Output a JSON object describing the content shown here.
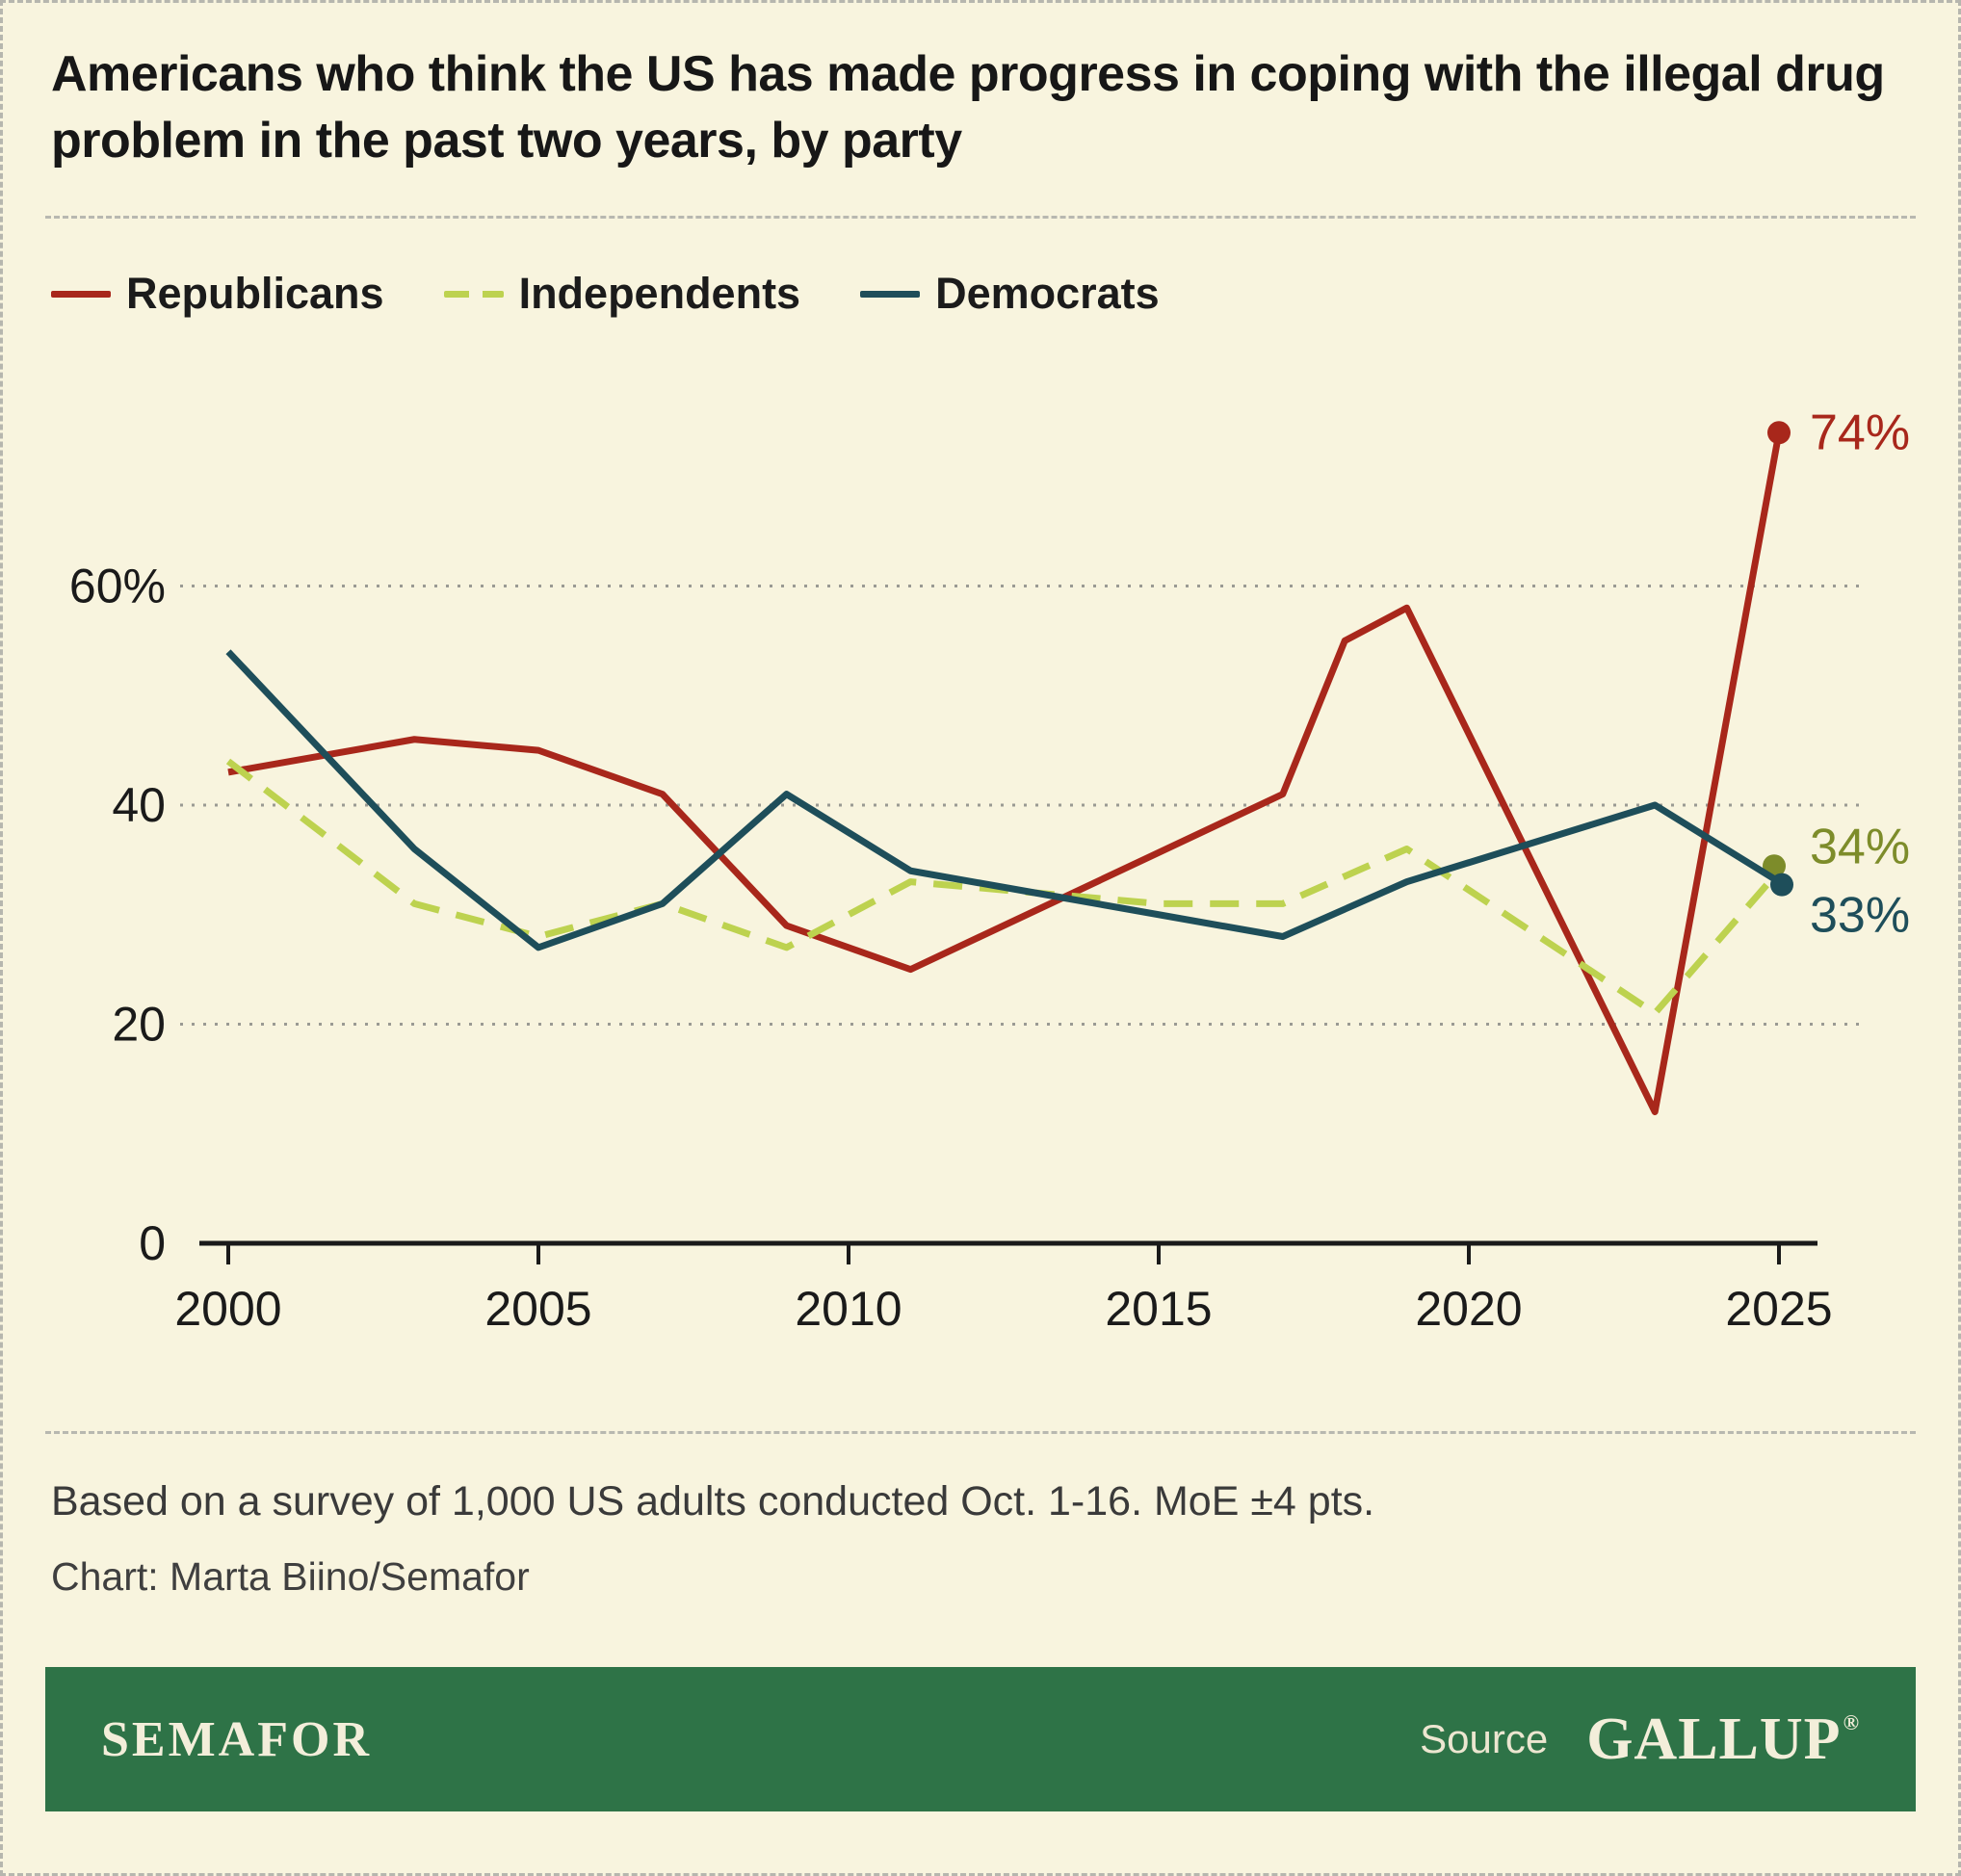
{
  "chart_data": {
    "type": "line",
    "title": "Americans who think the US has made progress in coping with the illegal drug problem in the past two years, by party",
    "xlabel": "",
    "ylabel": "",
    "xlim": [
      2000,
      2025
    ],
    "ylim": [
      0,
      80
    ],
    "x_ticks": [
      2000,
      2005,
      2010,
      2015,
      2020,
      2025
    ],
    "y_ticks": [
      0,
      20,
      40,
      60
    ],
    "y_tick_labels": [
      "0",
      "20",
      "40",
      "60%"
    ],
    "grid": "horizontal dotted",
    "legend_position": "top-left",
    "series": [
      {
        "name": "Republicans",
        "color": "#a8271b",
        "style": "solid",
        "points": [
          [
            2000,
            43
          ],
          [
            2003,
            46
          ],
          [
            2005,
            45
          ],
          [
            2007,
            41
          ],
          [
            2009,
            29
          ],
          [
            2011,
            25
          ],
          [
            2017,
            41
          ],
          [
            2018,
            55
          ],
          [
            2019,
            58
          ],
          [
            2023,
            12
          ],
          [
            2025,
            74
          ]
        ],
        "end_label": "74%",
        "end_label_color": "#a8271b"
      },
      {
        "name": "Independents",
        "color": "#bdd24f",
        "style": "dashed",
        "points": [
          [
            2000,
            44
          ],
          [
            2003,
            31
          ],
          [
            2005,
            28
          ],
          [
            2007,
            31
          ],
          [
            2009,
            27
          ],
          [
            2011,
            33
          ],
          [
            2013,
            32
          ],
          [
            2015,
            31
          ],
          [
            2017,
            31
          ],
          [
            2019,
            36
          ],
          [
            2023,
            21
          ],
          [
            2025,
            34
          ]
        ],
        "end_label": "34%",
        "end_label_color": "#7d8c2a",
        "dot_color": "#7d8c2a"
      },
      {
        "name": "Democrats",
        "color": "#1e4e5a",
        "style": "solid",
        "points": [
          [
            2000,
            54
          ],
          [
            2003,
            36
          ],
          [
            2005,
            27
          ],
          [
            2007,
            31
          ],
          [
            2009,
            41
          ],
          [
            2011,
            34
          ],
          [
            2013,
            32
          ],
          [
            2015,
            30
          ],
          [
            2017,
            28
          ],
          [
            2019,
            33
          ],
          [
            2023,
            40
          ],
          [
            2025,
            33
          ]
        ],
        "end_label": "33%",
        "end_label_color": "#1e4e5a"
      }
    ]
  },
  "notes": {
    "survey": "Based on a survey of 1,000 US adults conducted Oct. 1-16. MoE ±4 pts.",
    "credit": "Chart: Marta Biino/Semafor"
  },
  "footer": {
    "brand": "SEMAFOR",
    "source_label": "Source",
    "source_name": "GALLUP",
    "registered_mark": "®",
    "bar_color": "#2e7347"
  }
}
